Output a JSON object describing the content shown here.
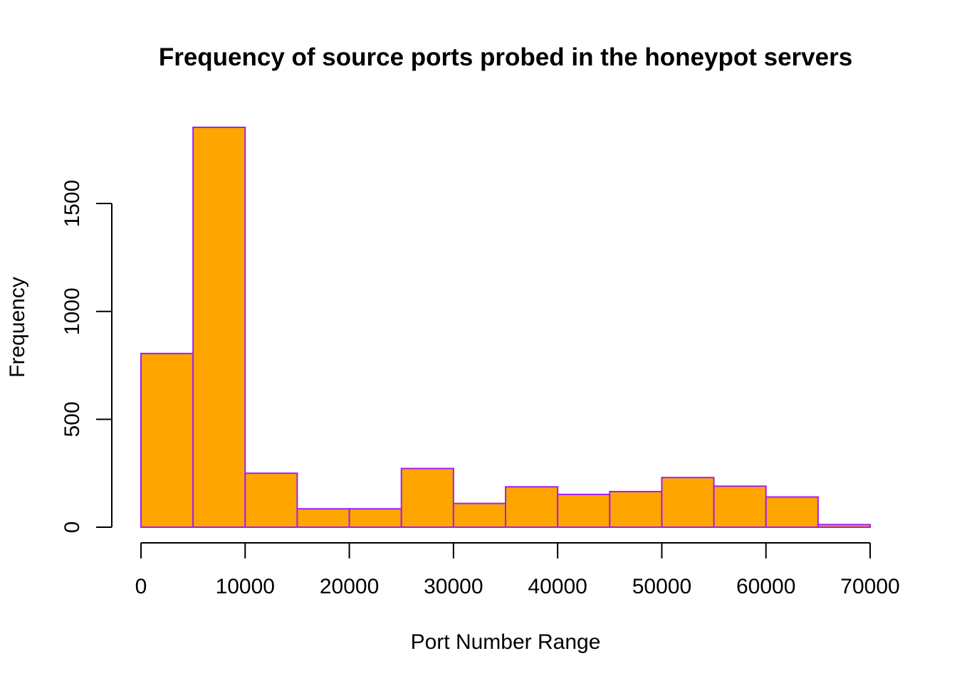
{
  "chart_data": {
    "type": "bar",
    "title": "Frequency of source ports probed in the honeypot servers",
    "xlabel": "Port Number Range",
    "ylabel": "Frequency",
    "bin_edges": [
      0,
      5000,
      10000,
      15000,
      20000,
      25000,
      30000,
      35000,
      40000,
      45000,
      50000,
      55000,
      60000,
      65000,
      70000
    ],
    "values": [
      805,
      1853,
      250,
      85,
      85,
      272,
      110,
      187,
      152,
      165,
      230,
      190,
      140,
      12
    ],
    "xlim": [
      0,
      70000
    ],
    "ylim": [
      0,
      1853
    ],
    "x_ticks": [
      0,
      10000,
      20000,
      30000,
      40000,
      50000,
      60000,
      70000
    ],
    "y_ticks": [
      0,
      500,
      1000,
      1500
    ],
    "x_tick_labels": [
      "0",
      "10000",
      "20000",
      "30000",
      "40000",
      "50000",
      "60000",
      "70000"
    ],
    "y_tick_labels": [
      "0",
      "500",
      "1000",
      "1500"
    ],
    "grid": false,
    "bar_fill_color": "#FFA500",
    "bar_border_color": "#A020F0"
  }
}
